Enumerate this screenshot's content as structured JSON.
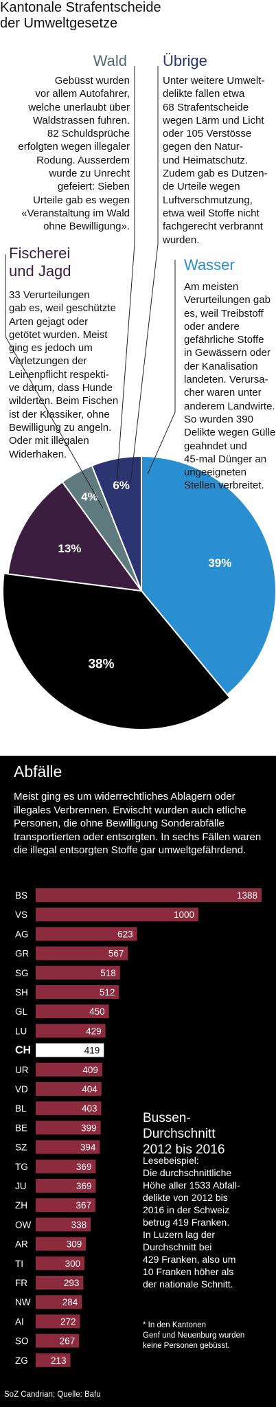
{
  "title": "Kantonale Strafentscheide\nder Umweltgesetze",
  "sections": {
    "wald": {
      "heading": "Wald",
      "text": "Gebüsst wurden\nvor allem Autofahrer,\nwelche unerlaubt über\nWaldstrassen fuhren.\n82 Schuldsprüche\nerfolgten wegen illegaler\nRodung. Ausserdem\nwurde zu Unrecht\ngefeiert: Sieben\nUrteile gab es wegen\n«Veranstaltung im Wald\nohne Bewilligung»."
    },
    "uebrige": {
      "heading": "Übrige",
      "text": "Unter weitere Umwelt-\ndelikte fallen etwa\n68 Strafentscheide\nwegen Lärm und Licht\noder 105 Verstösse\ngegen den Natur-\nund Heimatschutz.\nZudem gab es Dutzen-\nde Urteile wegen\nLuftverschmutzung,\netwa weil Stoffe nicht\nfachgerecht verbrannt\nwurden."
    },
    "fischerei": {
      "heading": "Fischerei\nund Jagd",
      "text": "33 Verurteilungen\ngab es, weil geschützte\nArten gejagt oder\ngetötet wurden. Meist\nging es jedoch um\nVerletzungen der\nLeinenpflicht respekti-\nve darum, dass Hunde\nwilderten. Beim Fischen\nist der Klassiker, ohne\nBewilligung zu angeln.\nOder mit illegalen\nWiderhaken."
    },
    "wasser": {
      "heading": "Wasser",
      "text": "Am meisten\nVerurteilungen gab\nes, weil Treibstoff\noder andere\ngefährliche Stoffe\nin Gewässern oder\nder Kanalisation\nlandeten. Verursa-\ncher waren unter\nanderem Landwirte.\nSo wurden 390\nDelikte wegen Gülle\ngeahndet und\n45-mal Dünger an\nungeeigneten\nStellen verbreitet."
    },
    "abfaelle": {
      "heading": "Abfälle",
      "text": "Meist ging es um widerrechtliches Ablagern oder illegales Verbrennen. Erwischt wurden auch etliche Personen, die ohne Bewilligung Sonderabfälle transportierten oder entsorgten. In sechs Fällen waren die illegal entsorgten Stoffe gar umweltgefährdend."
    }
  },
  "side": {
    "bussen_heading": "Bussen-\nDurchschnitt\n2012 bis 2016",
    "lesebeispiel": "Lesebeispiel:\nDie durchschnittliche\nHöhe aller 1533 Abfall-\ndelikte von 2012 bis\n2016 in der Schweiz\nbetrug 419 Franken.\nIn Luzern lag der\nDurchschnitt bei\n429 Franken, also um\n10 Franken höher als\nder nationale Schnitt.",
    "note": "* In den Kantonen\nGenf und Neuenburg wurden\nkeine Personen gebüsst."
  },
  "source": "SoZ Candrian; Quelle: Bafu",
  "colors": {
    "wasser": "#2a8fd0",
    "abfaelle": "#000000",
    "fischerei": "#3b1d3f",
    "wald": "#5f7b80",
    "uebrige": "#2c3572",
    "bar": "#8c2a3e",
    "bar_ch": "#ffffff"
  },
  "chart_data": [
    {
      "type": "pie",
      "slices": [
        {
          "name": "Wasser",
          "value": 39,
          "label": "39%",
          "color": "#2a8fd0"
        },
        {
          "name": "Abfälle",
          "value": 38,
          "label": "38%",
          "color": "#000000"
        },
        {
          "name": "Fischerei und Jagd",
          "value": 13,
          "label": "13%",
          "color": "#3b1d3f"
        },
        {
          "name": "Wald",
          "value": 4,
          "label": "4%",
          "color": "#5f7b80"
        },
        {
          "name": "Übrige",
          "value": 6,
          "label": "6%",
          "color": "#2c3572"
        }
      ]
    },
    {
      "type": "bar",
      "orientation": "horizontal",
      "categories": [
        "BS",
        "VS",
        "AG",
        "GR",
        "SG",
        "SH",
        "GL",
        "LU",
        "CH",
        "UR",
        "VD",
        "BL",
        "BE",
        "SZ",
        "TG",
        "JU",
        "ZH",
        "OW",
        "AR",
        "TI",
        "FR",
        "NW",
        "AI",
        "SO",
        "ZG"
      ],
      "values": [
        1388,
        1000,
        623,
        567,
        518,
        512,
        450,
        429,
        419,
        409,
        404,
        403,
        399,
        394,
        369,
        369,
        367,
        338,
        309,
        300,
        293,
        284,
        272,
        267,
        213
      ],
      "highlight": "CH"
    }
  ]
}
